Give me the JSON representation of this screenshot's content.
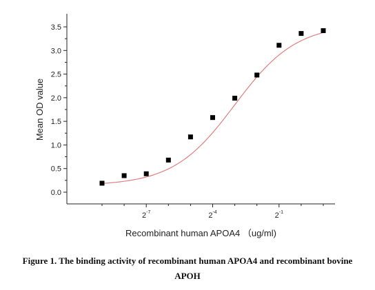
{
  "chart_data": {
    "type": "scatter",
    "title": "",
    "xlabel": "Recombinant human  APOA4 （ug/ml)",
    "ylabel": "Mean OD value",
    "xlim": [
      0,
      10
    ],
    "ylim": [
      -0.15,
      3.65
    ],
    "x_ticks": [
      {
        "pos": 2,
        "base": "2",
        "exp": "-7"
      },
      {
        "pos": 5,
        "base": "2",
        "exp": "-4"
      },
      {
        "pos": 8,
        "base": "2",
        "exp": "-1"
      }
    ],
    "y_ticks": [
      0.0,
      0.5,
      1.0,
      1.5,
      2.0,
      2.5,
      3.0,
      3.5
    ],
    "y_tick_labels": [
      "0.0",
      "0.5",
      "1.0",
      "1.5",
      "2.0",
      "2.5",
      "3.0",
      "3.5"
    ],
    "series": [
      {
        "marker": "square",
        "x": [
          0,
          1,
          2,
          3,
          4,
          5,
          6,
          7,
          8,
          9,
          10
        ],
        "y": [
          0.19,
          0.35,
          0.39,
          0.68,
          1.17,
          1.58,
          1.99,
          2.48,
          3.11,
          3.36,
          3.42
        ]
      }
    ],
    "fit": {
      "type": "sigmoid",
      "bottom": 0.14,
      "top": 3.56,
      "x_mid": 6.0,
      "slope": 0.72
    },
    "colors": {
      "points": "#000000",
      "fit": "#e07f7f",
      "axis": "#222222"
    },
    "grid": false
  },
  "caption": {
    "line1": "Figure 1. The binding activity of recombinant human APOA4 and recombinant bovine",
    "line2": "APOH"
  }
}
